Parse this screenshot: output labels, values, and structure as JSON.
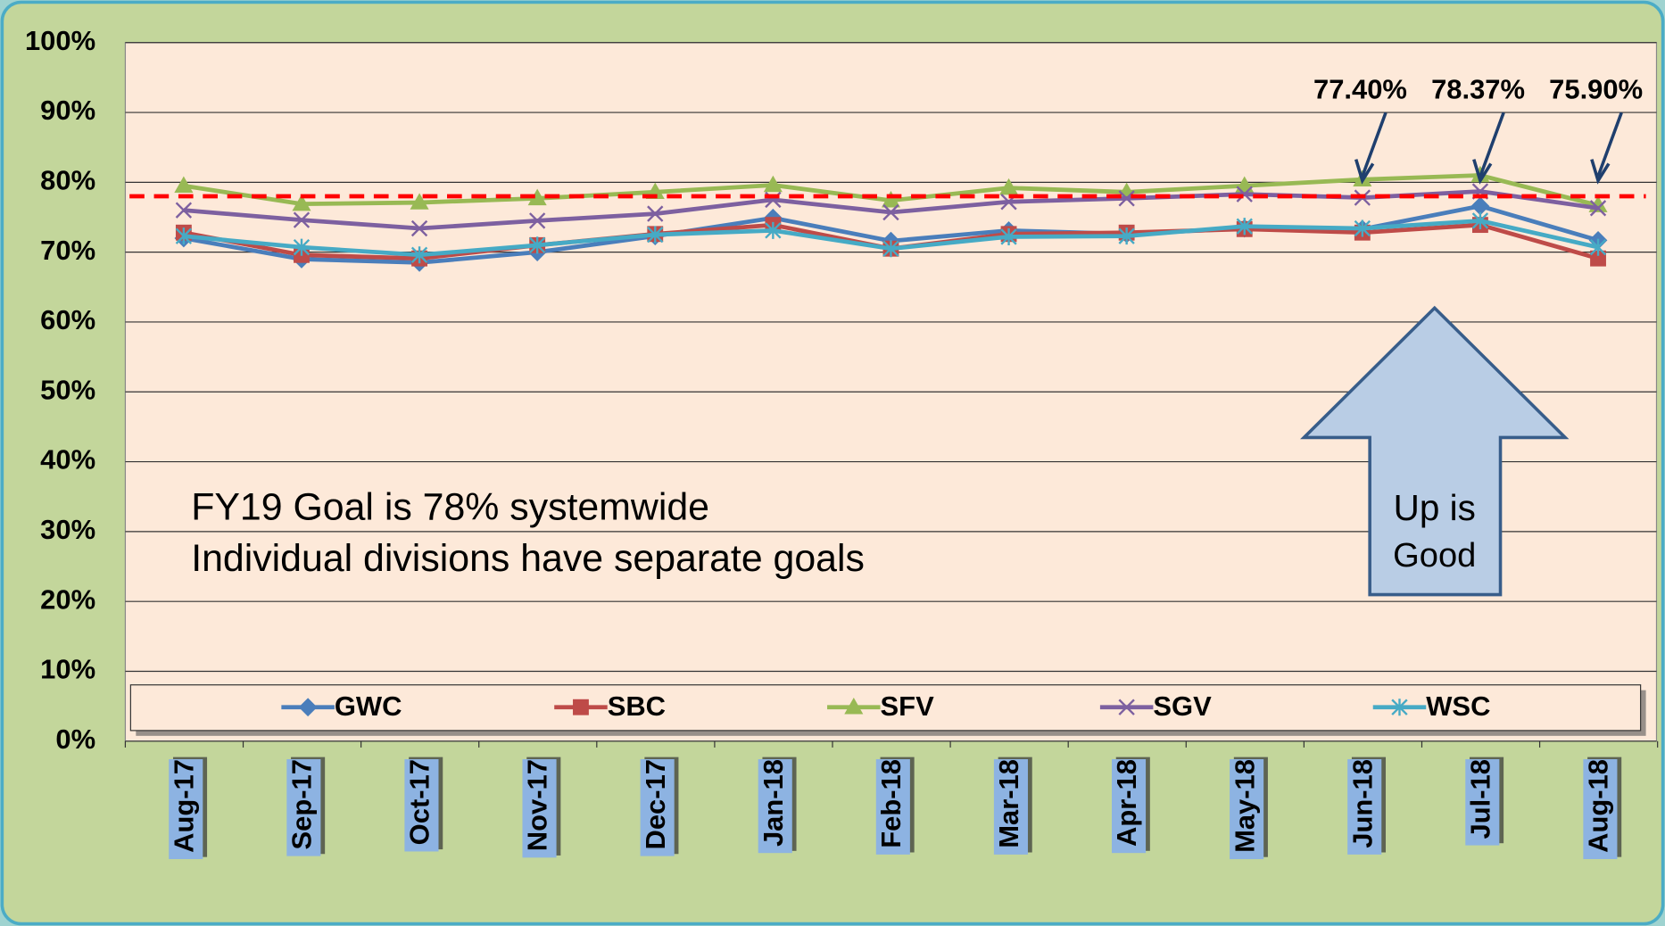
{
  "chart_data": {
    "type": "line",
    "categories": [
      "Aug-17",
      "Sep-17",
      "Oct-17",
      "Nov-17",
      "Dec-17",
      "Jan-18",
      "Feb-18",
      "Mar-18",
      "Apr-18",
      "May-18",
      "Jun-18",
      "Jul-18",
      "Aug-18"
    ],
    "series": [
      {
        "name": "GWC",
        "color": "#4a7ebb",
        "values": [
          72.0,
          69.0,
          68.5,
          70.0,
          72.3,
          74.9,
          71.6,
          73.1,
          72.6,
          73.4,
          73.3,
          76.6,
          71.7
        ]
      },
      {
        "name": "SBC",
        "color": "#be4b48",
        "values": [
          72.8,
          69.6,
          69.1,
          71.0,
          72.6,
          73.9,
          70.5,
          72.6,
          72.8,
          73.3,
          72.8,
          73.9,
          69.1
        ]
      },
      {
        "name": "SFV",
        "color": "#98b954",
        "values": [
          79.5,
          76.9,
          77.1,
          77.7,
          78.6,
          79.6,
          77.4,
          79.2,
          78.6,
          79.5,
          80.4,
          81.0,
          76.7
        ]
      },
      {
        "name": "SGV",
        "color": "#7d60a0",
        "values": [
          76.0,
          74.6,
          73.4,
          74.5,
          75.5,
          77.5,
          75.7,
          77.2,
          77.7,
          78.3,
          77.8,
          78.7,
          76.3
        ]
      },
      {
        "name": "WSC",
        "color": "#46aac5",
        "values": [
          72.3,
          70.7,
          69.6,
          71.0,
          72.5,
          73.1,
          70.5,
          72.2,
          72.3,
          73.7,
          73.4,
          74.5,
          70.7
        ]
      }
    ],
    "goal": 78,
    "goal_color": "#ff0000",
    "ylim": [
      0,
      100
    ],
    "yticks": [
      {
        "value": 0,
        "label": "0%"
      },
      {
        "value": 10,
        "label": "10%"
      },
      {
        "value": 20,
        "label": "20%"
      },
      {
        "value": 30,
        "label": "30%"
      },
      {
        "value": 40,
        "label": "40%"
      },
      {
        "value": 50,
        "label": "50%"
      },
      {
        "value": 60,
        "label": "60%"
      },
      {
        "value": 70,
        "label": "70%"
      },
      {
        "value": 80,
        "label": "80%"
      },
      {
        "value": 90,
        "label": "90%"
      },
      {
        "value": 100,
        "label": "100%"
      }
    ],
    "grid": true,
    "legend": "bottom",
    "annotations": [
      {
        "label": "77.40%",
        "x": "Jun-18"
      },
      {
        "label": "78.37%",
        "x": "Jul-18"
      },
      {
        "label": "75.90%",
        "x": "Aug-18"
      }
    ],
    "notes": [
      "FY19 Goal is 78% systemwide",
      "Individual divisions have separate goals"
    ],
    "arrow_text": [
      "Up is",
      "Good"
    ]
  }
}
